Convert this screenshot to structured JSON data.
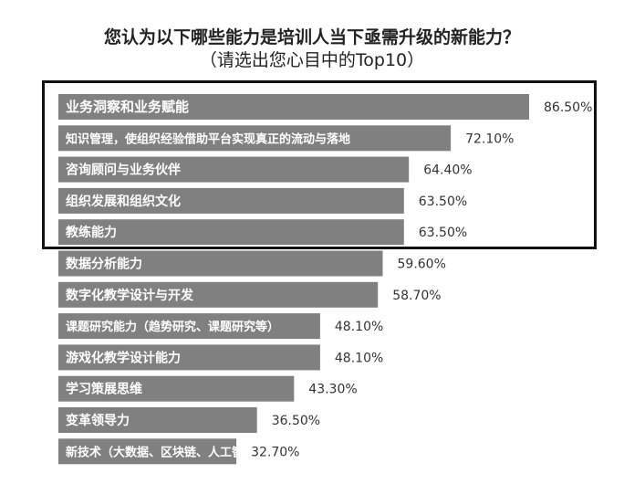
{
  "title": "您认为以下哪些能力是培训人当下亟需升级的新能力？",
  "subtitle": "（请选出您心目中的Top10）",
  "colors": {
    "bar": "#808080",
    "bar_text": "#ffffff",
    "value_text": "#333333",
    "highlight_border": "#111111"
  },
  "chart_data": {
    "type": "bar",
    "orientation": "horizontal",
    "title": "您认为以下哪些能力是培训人当下亟需升级的新能力？",
    "subtitle": "（请选出您心目中的Top10）",
    "categories": [
      "业务洞察和业务赋能",
      "知识管理，使组织经验借助平台实现真正的流动与落地",
      "咨询顾问与业务伙伴",
      "组织发展和组织文化",
      "教练能力",
      "数据分析能力",
      "数字化教学设计与开发",
      "课题研究能力（趋势研究、课题研究等）",
      "游戏化教学设计能力",
      "学习策展思维",
      "变革领导力",
      "新技术（大数据、区块链、人工智能等）融入的能力"
    ],
    "values": [
      86.5,
      72.1,
      64.4,
      63.5,
      63.5,
      59.6,
      58.7,
      48.1,
      48.1,
      43.3,
      36.5,
      32.7
    ],
    "value_labels": [
      "86.50%",
      "72.10%",
      "64.40%",
      "63.50%",
      "63.50%",
      "59.60%",
      "58.70%",
      "48.10%",
      "48.10%",
      "43.30%",
      "36.50%",
      "32.70%"
    ],
    "highlighted_top": 5,
    "xlim": [
      0,
      86.5
    ],
    "grid": false
  }
}
